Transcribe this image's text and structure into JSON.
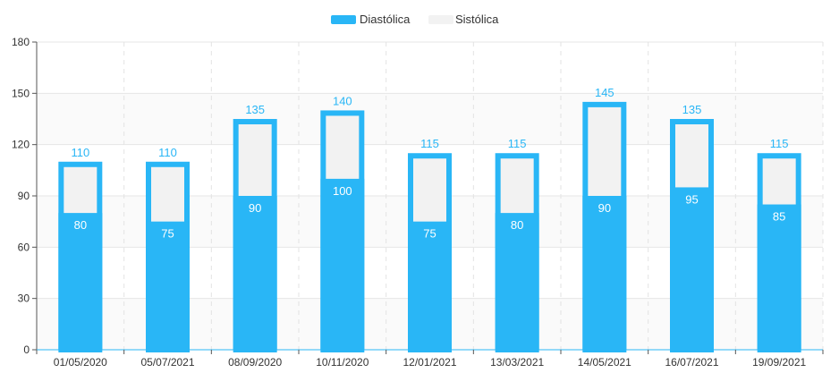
{
  "chart_data": {
    "type": "bar",
    "stacked": false,
    "overlapping": true,
    "categories": [
      "01/05/2020",
      "05/07/2021",
      "08/09/2020",
      "10/11/2020",
      "12/01/2021",
      "13/03/2021",
      "14/05/2021",
      "16/07/2021",
      "19/09/2021"
    ],
    "series": [
      {
        "name": "Diastólica",
        "color": "#29B6F6",
        "values": [
          80,
          75,
          90,
          100,
          75,
          80,
          90,
          95,
          85
        ]
      },
      {
        "name": "Sistólica",
        "color": "#F2F2F2",
        "border_color": "#29B6F6",
        "values": [
          110,
          110,
          135,
          140,
          115,
          115,
          145,
          135,
          115
        ]
      }
    ],
    "ylim": [
      0,
      180
    ],
    "yticks": [
      0,
      30,
      60,
      90,
      120,
      150,
      180
    ],
    "grid": true,
    "legend": "top-center",
    "title": "",
    "xlabel": "",
    "ylabel": ""
  }
}
